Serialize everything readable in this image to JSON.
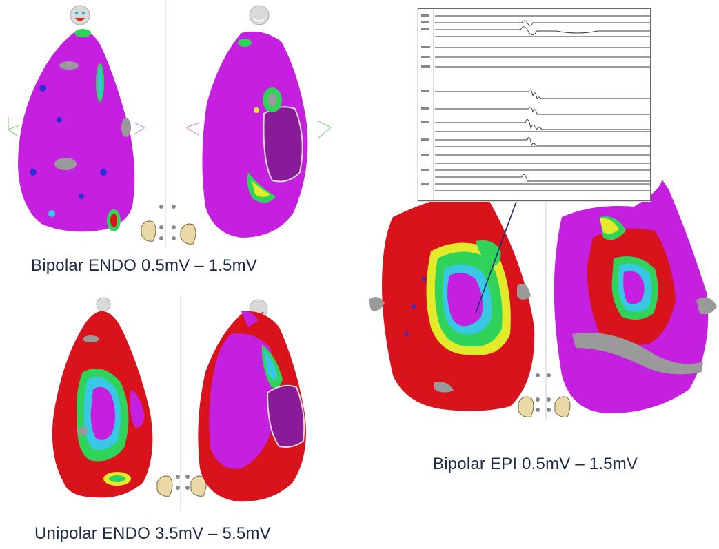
{
  "captions": {
    "bipolar_endo": "Bipolar ENDO 0.5mV – 1.5mV",
    "unipolar_endo": "Unipolar ENDO 3.5mV – 5.5mV",
    "bipolar_epi": "Bipolar EPI 0.5mV – 1.5mV"
  },
  "colors": {
    "scar_red": "#d8131b",
    "border_yellow": "#e3ea2a",
    "border_green": "#2fd35a",
    "border_cyan": "#39c7e6",
    "border_blue": "#2a2fd6",
    "healthy_purple": "#c51fe0",
    "no_data_gray": "#9a9a9a"
  },
  "icons": [
    "face-orientation-icon",
    "heart-orientation-icon",
    "compass-icon"
  ]
}
